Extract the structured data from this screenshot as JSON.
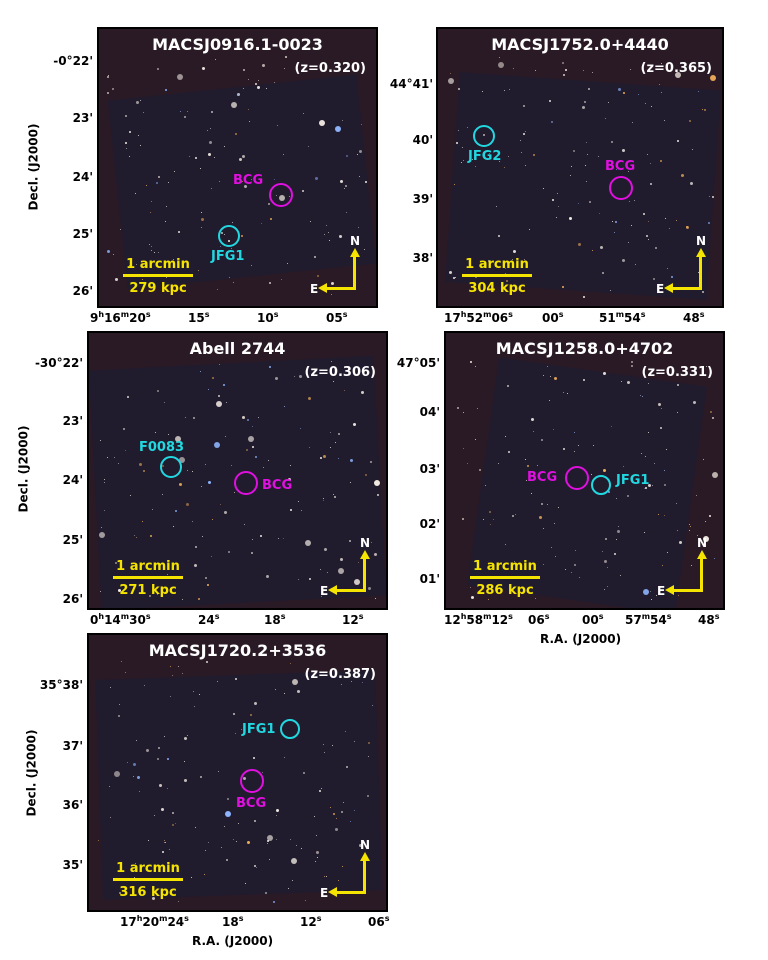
{
  "panels": [
    {
      "title": "MACSJ0916.1-0023",
      "z": "(z=0.320)",
      "scale_top": "1 arcmin",
      "scale_bottom": "279 kpc",
      "compass_n": "N",
      "compass_e": "E",
      "bcg": "BCG",
      "source_label": "JFG1",
      "yticks": [
        "-0°22'",
        "23'",
        "24'",
        "25'",
        "26'"
      ],
      "ylabel": "Decl. (J2000)",
      "xticks": [
        "9h16m20s",
        "15s",
        "10s",
        "05s"
      ]
    },
    {
      "title": "MACSJ1752.0+4440",
      "z": "(z=0.365)",
      "scale_top": "1 arcmin",
      "scale_bottom": "304 kpc",
      "compass_n": "N",
      "compass_e": "E",
      "bcg": "BCG",
      "source_label": "JFG2",
      "yticks": [
        "44°41'",
        "40'",
        "39'",
        "38'"
      ],
      "xticks": [
        "17h52m06s",
        "00s",
        "51m54s",
        "48s"
      ]
    },
    {
      "title": "Abell 2744",
      "z": "(z=0.306)",
      "scale_top": "1 arcmin",
      "scale_bottom": "271 kpc",
      "compass_n": "N",
      "compass_e": "E",
      "bcg": "BCG",
      "source_label": "F0083",
      "yticks": [
        "-30°22'",
        "23'",
        "24'",
        "25'",
        "26'"
      ],
      "ylabel": "Decl. (J2000)",
      "xticks": [
        "0h14m30s",
        "24s",
        "18s",
        "12s"
      ]
    },
    {
      "title": "MACSJ1258.0+4702",
      "z": "(z=0.331)",
      "scale_top": "1 arcmin",
      "scale_bottom": "286 kpc",
      "compass_n": "N",
      "compass_e": "E",
      "bcg": "BCG",
      "source_label": "JFG1",
      "yticks": [
        "47°05'",
        "04'",
        "03'",
        "02'",
        "01'"
      ],
      "xticks": [
        "12h58m12s",
        "06s",
        "00s",
        "57m54s",
        "48s"
      ],
      "xlabel": "R.A. (J2000)"
    },
    {
      "title": "MACSJ1720.2+3536",
      "z": "(z=0.387)",
      "scale_top": "1 arcmin",
      "scale_bottom": "316 kpc",
      "compass_n": "N",
      "compass_e": "E",
      "bcg": "BCG",
      "source_label": "JFG1",
      "yticks": [
        "35°38'",
        "37'",
        "36'",
        "35'"
      ],
      "ylabel": "Decl. (J2000)",
      "xticks": [
        "17h20m24s",
        "18s",
        "12s",
        "06s"
      ],
      "xlabel": "R.A. (J2000)"
    }
  ]
}
